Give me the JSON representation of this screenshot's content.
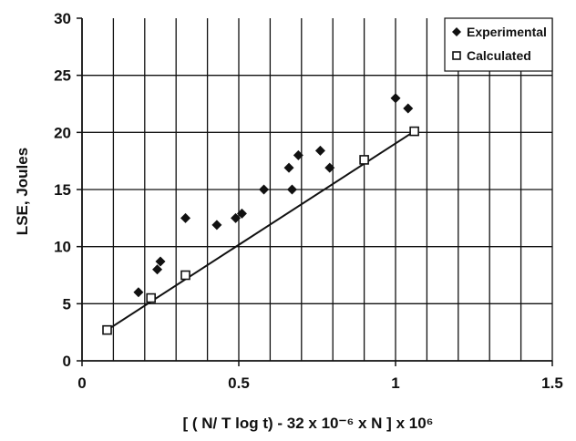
{
  "chart_data": {
    "type": "scatter",
    "xlabel": "[ ( N/ T log t) - 32 x 10⁻⁶ x N ] x 10⁶",
    "ylabel": "LSE, Joules",
    "xlim": [
      0,
      1.5
    ],
    "ylim": [
      0,
      30
    ],
    "xticks": [
      0,
      0.5,
      1,
      1.5
    ],
    "xtick_labels": [
      "0",
      "0.5",
      "1",
      "1.5"
    ],
    "yticks": [
      0,
      5,
      10,
      15,
      20,
      25,
      30
    ],
    "ytick_labels": [
      "0",
      "5",
      "10",
      "15",
      "20",
      "25",
      "30"
    ],
    "grid": {
      "x_step": 0.1,
      "y_step": 5
    },
    "legend_position": "top-right",
    "series": [
      {
        "name": "Experimental",
        "marker": "diamond",
        "color": "#111111",
        "points": [
          [
            0.18,
            6.0
          ],
          [
            0.24,
            8.0
          ],
          [
            0.25,
            8.7
          ],
          [
            0.33,
            12.5
          ],
          [
            0.43,
            11.9
          ],
          [
            0.49,
            12.5
          ],
          [
            0.51,
            12.9
          ],
          [
            0.58,
            15.0
          ],
          [
            0.66,
            16.9
          ],
          [
            0.67,
            15.0
          ],
          [
            0.69,
            18.0
          ],
          [
            0.76,
            18.4
          ],
          [
            0.79,
            16.9
          ],
          [
            1.0,
            23.0
          ],
          [
            1.04,
            22.1
          ]
        ]
      },
      {
        "name": "Calculated",
        "marker": "open-square",
        "color": "#111111",
        "points": [
          [
            0.08,
            2.7
          ],
          [
            0.22,
            5.5
          ],
          [
            0.33,
            7.5
          ],
          [
            0.9,
            17.6
          ],
          [
            1.06,
            20.1
          ]
        ]
      }
    ],
    "trend_line": {
      "x1": 0.08,
      "y1": 2.7,
      "x2": 1.06,
      "y2": 20.1
    }
  }
}
